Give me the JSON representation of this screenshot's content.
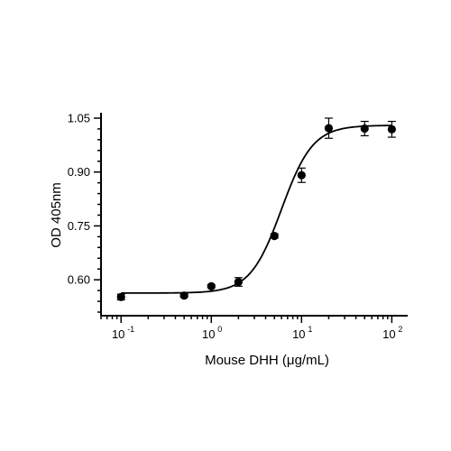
{
  "chart_data": {
    "type": "scatter",
    "title": "",
    "xlabel": "Mouse DHH (μg/mL)",
    "ylabel": "OD 405nm",
    "xscale": "log",
    "xlim": [
      0.06,
      150
    ],
    "ylim": [
      0.5,
      1.06
    ],
    "x_ticks": [
      {
        "value": 0.1,
        "base": "10",
        "exp": "-1"
      },
      {
        "value": 1,
        "base": "10",
        "exp": "0"
      },
      {
        "value": 10,
        "base": "10",
        "exp": "1"
      },
      {
        "value": 100,
        "base": "10",
        "exp": "2"
      }
    ],
    "y_ticks": [
      "0.60",
      "0.75",
      "0.90",
      "1.05"
    ],
    "grid": false,
    "series": [
      {
        "x": [
          0.1,
          0.5,
          1,
          2,
          5,
          10,
          20,
          50,
          100
        ],
        "y": [
          0.552,
          0.556,
          0.582,
          0.594,
          0.722,
          0.891,
          1.022,
          1.021,
          1.019
        ],
        "error": [
          0.008,
          0.004,
          0.004,
          0.012,
          0.006,
          0.02,
          0.028,
          0.02,
          0.022
        ]
      }
    ],
    "fit": {
      "bottom": 0.563,
      "top": 1.03,
      "ec50": 6.0,
      "hill": 2.5
    },
    "colors": {
      "marker": "#000000",
      "line": "#000000"
    }
  }
}
